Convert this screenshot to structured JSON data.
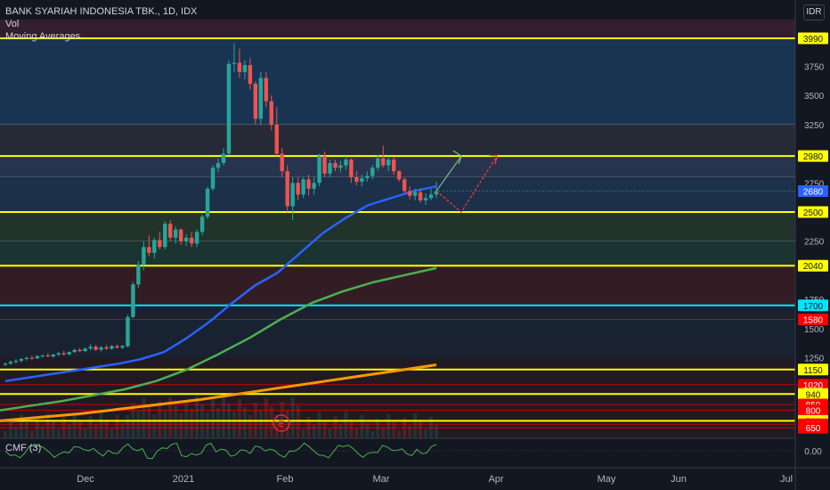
{
  "legend": {
    "title": "BANK SYARIAH INDONESIA TBK., 1D, IDX",
    "vol": "Vol",
    "ma": "Moving Averages"
  },
  "currency": "IDR",
  "cmf": {
    "label": "CMF (3)",
    "axis_label": "0.00"
  },
  "event_marker": "E",
  "colors": {
    "bg": "#131722",
    "up": "#26a69a",
    "down": "#ef5350",
    "yellow": "#ffff00",
    "cyan": "#00e5ff",
    "red": "#ff0000",
    "ma_short": "#2962ff",
    "ma_mid": "#4caf50",
    "ma_long": "#ff9800",
    "cmf": "#4caf50"
  },
  "chart_data": {
    "type": "candlestick",
    "title": "BANK SYARIAH INDONESIA TBK., 1D, IDX",
    "y_axis": {
      "ticks": [
        1250,
        1500,
        1750,
        2250,
        2750,
        3250,
        3500,
        3750
      ],
      "range": [
        560,
        4150
      ]
    },
    "x_axis": {
      "ticks": [
        "Dec",
        "2021",
        "Feb",
        "Mar",
        "Apr",
        "May",
        "Jun",
        "Jul"
      ]
    },
    "last_price": 2680,
    "levels": [
      {
        "value": 3990,
        "label": "3990",
        "color": "#ffff00"
      },
      {
        "value": 2980,
        "label": "2980",
        "color": "#ffff00"
      },
      {
        "value": 2500,
        "label": "2500",
        "color": "#ffff00"
      },
      {
        "value": 2040,
        "label": "2040",
        "color": "#ffff00"
      },
      {
        "value": 1700,
        "label": "1700",
        "color": "#00e5ff"
      },
      {
        "value": 1580,
        "label": "1580",
        "color": "#ff0000"
      },
      {
        "value": 1150,
        "label": "1150",
        "color": "#ffff00"
      },
      {
        "value": 1020,
        "label": "1020",
        "color": "#ff0000"
      },
      {
        "value": 940,
        "label": "940",
        "color": "#ffff00"
      },
      {
        "value": 850,
        "label": "850",
        "color": "#ff0000"
      },
      {
        "value": 800,
        "label": "800",
        "color": "#ff0000"
      },
      {
        "value": 710,
        "label": "710",
        "color": "#ffff00"
      },
      {
        "value": 680,
        "label": "680",
        "color": "#ff0000"
      },
      {
        "value": 650,
        "label": "650",
        "color": "#ff0000"
      }
    ],
    "candles": [
      [
        1190,
        1210,
        1180,
        1200
      ],
      [
        1200,
        1230,
        1190,
        1215
      ],
      [
        1215,
        1240,
        1200,
        1225
      ],
      [
        1225,
        1250,
        1210,
        1240
      ],
      [
        1240,
        1260,
        1225,
        1250
      ],
      [
        1250,
        1270,
        1235,
        1245
      ],
      [
        1245,
        1275,
        1240,
        1265
      ],
      [
        1265,
        1280,
        1250,
        1270
      ],
      [
        1270,
        1290,
        1255,
        1262
      ],
      [
        1262,
        1285,
        1250,
        1278
      ],
      [
        1278,
        1300,
        1265,
        1290
      ],
      [
        1290,
        1310,
        1270,
        1280
      ],
      [
        1280,
        1305,
        1270,
        1300
      ],
      [
        1300,
        1330,
        1290,
        1318
      ],
      [
        1318,
        1335,
        1300,
        1308
      ],
      [
        1308,
        1340,
        1300,
        1330
      ],
      [
        1330,
        1370,
        1315,
        1345
      ],
      [
        1345,
        1360,
        1310,
        1320
      ],
      [
        1320,
        1350,
        1305,
        1340
      ],
      [
        1340,
        1360,
        1320,
        1328
      ],
      [
        1328,
        1360,
        1320,
        1350
      ],
      [
        1350,
        1365,
        1330,
        1338
      ],
      [
        1338,
        1360,
        1325,
        1352
      ],
      [
        1350,
        1620,
        1340,
        1600
      ],
      [
        1600,
        1900,
        1590,
        1880
      ],
      [
        1880,
        2080,
        1850,
        2050
      ],
      [
        2050,
        2250,
        2000,
        2200
      ],
      [
        2200,
        2300,
        2120,
        2150
      ],
      [
        2150,
        2280,
        2100,
        2260
      ],
      [
        2260,
        2330,
        2180,
        2200
      ],
      [
        2200,
        2420,
        2180,
        2400
      ],
      [
        2400,
        2430,
        2250,
        2280
      ],
      [
        2280,
        2380,
        2230,
        2350
      ],
      [
        2350,
        2360,
        2220,
        2250
      ],
      [
        2250,
        2310,
        2210,
        2280
      ],
      [
        2280,
        2330,
        2200,
        2230
      ],
      [
        2230,
        2350,
        2200,
        2330
      ],
      [
        2330,
        2480,
        2300,
        2460
      ],
      [
        2460,
        2720,
        2440,
        2700
      ],
      [
        2700,
        2900,
        2680,
        2880
      ],
      [
        2880,
        2960,
        2840,
        2920
      ],
      [
        2920,
        3050,
        2900,
        3000
      ],
      [
        3000,
        3800,
        2990,
        3770
      ],
      [
        3770,
        3950,
        3700,
        3780
      ],
      [
        3780,
        3900,
        3650,
        3700
      ],
      [
        3700,
        3800,
        3640,
        3760
      ],
      [
        3760,
        3820,
        3550,
        3600
      ],
      [
        3600,
        3620,
        3250,
        3300
      ],
      [
        3300,
        3700,
        3250,
        3650
      ],
      [
        3650,
        3700,
        3400,
        3450
      ],
      [
        3450,
        3500,
        3200,
        3250
      ],
      [
        3250,
        3400,
        2980,
        3000
      ],
      [
        3000,
        3050,
        2800,
        2850
      ],
      [
        2850,
        2900,
        2500,
        2550
      ],
      [
        2550,
        2800,
        2430,
        2750
      ],
      [
        2750,
        2800,
        2600,
        2650
      ],
      [
        2650,
        2800,
        2620,
        2780
      ],
      [
        2780,
        2820,
        2640,
        2700
      ],
      [
        2700,
        2800,
        2650,
        2750
      ],
      [
        2750,
        3000,
        2720,
        2980
      ],
      [
        2980,
        3020,
        2800,
        2830
      ],
      [
        2830,
        2950,
        2800,
        2920
      ],
      [
        2920,
        2950,
        2850,
        2880
      ],
      [
        2880,
        2940,
        2840,
        2900
      ],
      [
        2900,
        2980,
        2860,
        2950
      ],
      [
        2950,
        2960,
        2750,
        2800
      ],
      [
        2800,
        2850,
        2730,
        2760
      ],
      [
        2760,
        2820,
        2720,
        2790
      ],
      [
        2790,
        2850,
        2760,
        2810
      ],
      [
        2810,
        2900,
        2780,
        2880
      ],
      [
        2880,
        2990,
        2850,
        2960
      ],
      [
        2960,
        3070,
        2880,
        2900
      ],
      [
        2900,
        2980,
        2850,
        2950
      ],
      [
        2950,
        2970,
        2820,
        2850
      ],
      [
        2850,
        2860,
        2760,
        2780
      ],
      [
        2780,
        2800,
        2660,
        2680
      ],
      [
        2680,
        2720,
        2610,
        2640
      ],
      [
        2640,
        2700,
        2600,
        2670
      ],
      [
        2670,
        2700,
        2580,
        2600
      ],
      [
        2600,
        2660,
        2560,
        2620
      ],
      [
        2620,
        2700,
        2600,
        2650
      ],
      [
        2650,
        2760,
        2620,
        2680
      ]
    ],
    "series": [
      {
        "values": [
          1050,
          1080,
          1110,
          1140,
          1170,
          1200,
          1240,
          1300,
          1420,
          1560,
          1720,
          1870,
          1980,
          2150,
          2320,
          2450,
          2560,
          2620,
          2680,
          2720
        ]
      },
      {
        "values": [
          800,
          840,
          880,
          930,
          980,
          1050,
          1150,
          1280,
          1420,
          1580,
          1720,
          1820,
          1900,
          1960,
          2020
        ]
      },
      {
        "values": [
          710,
          740,
          770,
          810,
          850,
          890,
          940,
          990,
          1040,
          1090,
          1140,
          1190
        ]
      }
    ],
    "projection": {
      "current": 2680,
      "pullback": 2500,
      "target": 2980
    }
  }
}
